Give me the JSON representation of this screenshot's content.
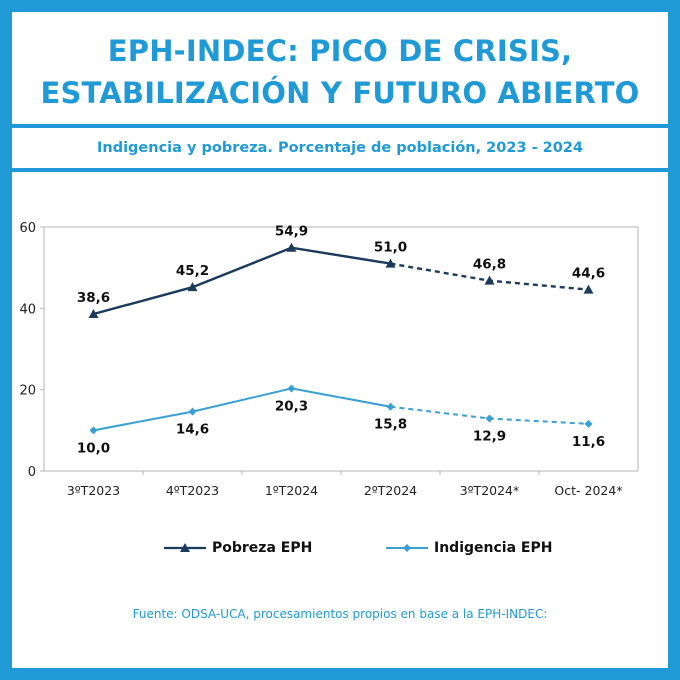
{
  "header": {
    "title_line1": "EPH-INDEC: PICO DE CRISIS,",
    "title_line2": "ESTABILIZACIÓN Y FUTURO ABIERTO",
    "subtitle": "Indigencia y pobreza. Porcentaje de población, 2023 - 2024"
  },
  "footer": {
    "source": "Fuente: ODSA-UCA, procesamientos propios en base a la EPH-INDEC:"
  },
  "colors": {
    "accent": "#1f9ad6",
    "pobreza": "#1b3a5c",
    "indigencia": "#3a9fd3"
  },
  "chart_data": {
    "type": "line",
    "categories": [
      "3ºT2023",
      "4ºT2023",
      "1ºT2024",
      "2ºT2024",
      "3ºT2024*",
      "Oct- 2024*"
    ],
    "yticks": [
      0,
      20,
      40,
      60
    ],
    "ylim": [
      0,
      60
    ],
    "grid": false,
    "legend_placement": "bottom",
    "dashed_from_index": 3,
    "series": [
      {
        "name": "Pobreza EPH",
        "values": [
          38.6,
          45.2,
          54.9,
          51.0,
          46.8,
          44.6
        ],
        "labels": [
          "38,6",
          "45,2",
          "54,9",
          "51,0",
          "46,8",
          "44,6"
        ],
        "marker": "triangle",
        "label_position": "above"
      },
      {
        "name": "Indigencia EPH",
        "values": [
          10.0,
          14.6,
          20.3,
          15.8,
          12.9,
          11.6
        ],
        "labels": [
          "10,0",
          "14,6",
          "20,3",
          "15,8",
          "12,9",
          "11,6"
        ],
        "marker": "diamond",
        "label_position": "below"
      }
    ]
  }
}
